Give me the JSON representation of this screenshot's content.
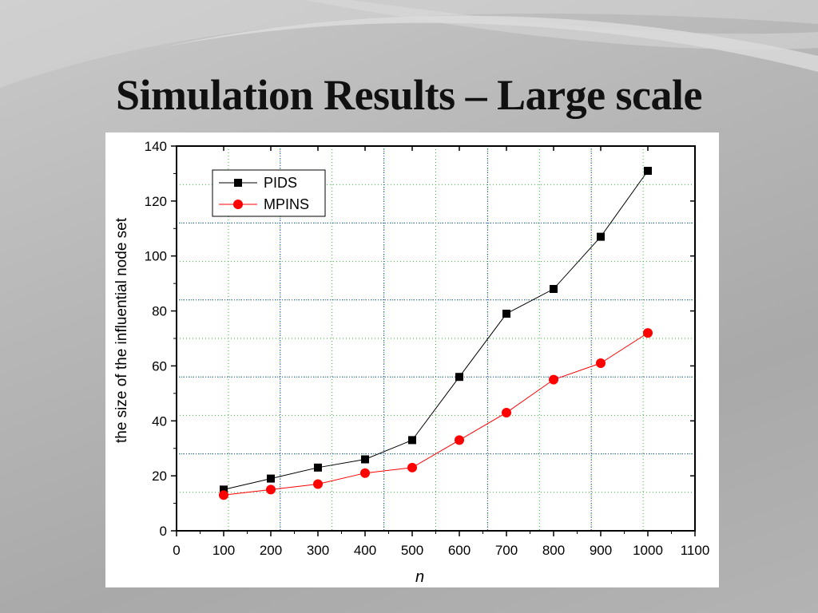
{
  "slide": {
    "title": "Simulation Results – Large scale"
  },
  "colors": {
    "pids": "#000000",
    "mpins": "#ff0000",
    "major_grid": "#3344cc",
    "minor_grid": "#33bb33"
  },
  "chart_data": {
    "type": "line",
    "title": "",
    "xlabel": "n",
    "ylabel": "the size of the influential node set",
    "xlim": [
      0,
      1100
    ],
    "ylim": [
      0,
      140
    ],
    "x_ticks": [
      "0",
      "100",
      "200",
      "300",
      "400",
      "500",
      "600",
      "700",
      "800",
      "900",
      "1000",
      "1100"
    ],
    "y_ticks": [
      "0",
      "20",
      "40",
      "60",
      "80",
      "100",
      "120",
      "140"
    ],
    "x": [
      100,
      200,
      300,
      400,
      500,
      600,
      700,
      800,
      900,
      1000
    ],
    "series": [
      {
        "name": "PIDS",
        "marker": "square",
        "color": "#000000",
        "values": [
          15,
          19,
          23,
          26,
          33,
          56,
          79,
          88,
          107,
          131
        ]
      },
      {
        "name": "MPINS",
        "marker": "circle",
        "color": "#ff0000",
        "values": [
          13,
          15,
          17,
          21,
          23,
          33,
          43,
          55,
          61,
          72
        ]
      }
    ],
    "grid": true,
    "legend_position": "top-left"
  }
}
